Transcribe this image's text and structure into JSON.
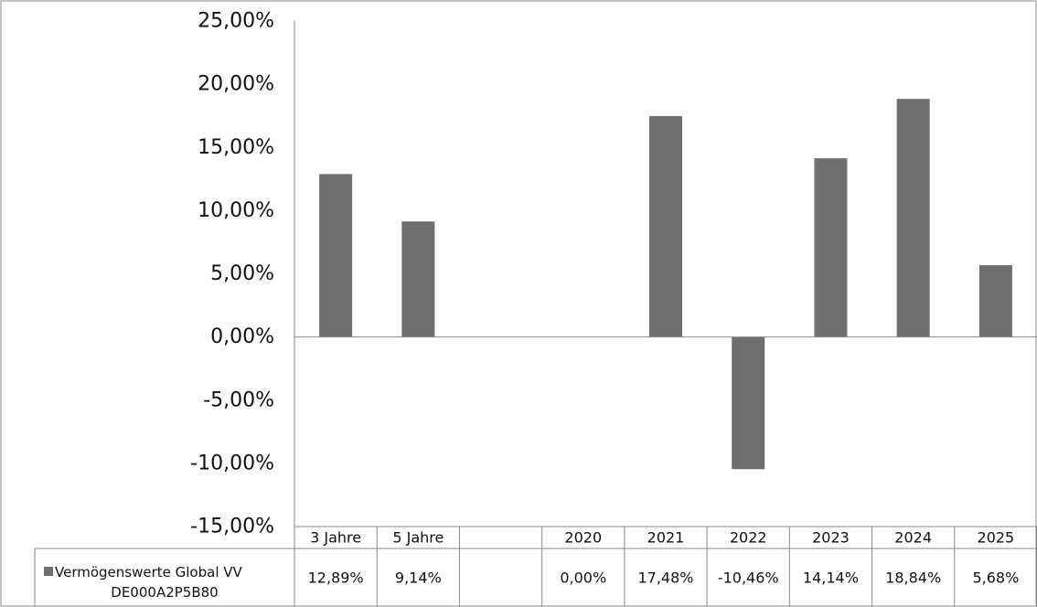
{
  "chart_data": {
    "type": "bar",
    "categories": [
      "3 Jahre",
      "5 Jahre",
      "",
      "2020",
      "2021",
      "2022",
      "2023",
      "2024",
      "2025"
    ],
    "series": [
      {
        "name": "Vermögenswerte Global VV DE000A2P5B80",
        "name_lines": [
          "Vermögenswerte Global VV",
          "DE000A2P5B80"
        ],
        "values": [
          12.89,
          9.14,
          null,
          0.0,
          17.48,
          -10.46,
          14.14,
          18.84,
          5.68
        ],
        "value_labels": [
          "12,89%",
          "9,14%",
          "",
          "0,00%",
          "17,48%",
          "-10,46%",
          "14,14%",
          "18,84%",
          "5,68%"
        ],
        "color": "#6f6f6f"
      }
    ],
    "ylim": [
      -15,
      25
    ],
    "yticks": [
      25,
      20,
      15,
      10,
      5,
      0,
      -5,
      -10,
      -15
    ],
    "ytick_labels": [
      "25,00%",
      "20,00%",
      "15,00%",
      "10,00%",
      "5,00%",
      "0,00%",
      "-5,00%",
      "-10,00%",
      "-15,00%"
    ],
    "legend": "data-table",
    "grid": false,
    "title": "",
    "xlabel": "",
    "ylabel": ""
  }
}
